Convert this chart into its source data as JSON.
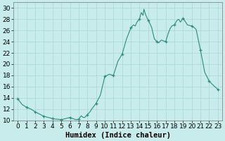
{
  "title": "",
  "xlabel": "Humidex (Indice chaleur)",
  "ylabel": "",
  "xlim": [
    -0.5,
    23.5
  ],
  "ylim": [
    10,
    31
  ],
  "yticks": [
    10,
    12,
    14,
    16,
    18,
    20,
    22,
    24,
    26,
    28,
    30
  ],
  "xticks": [
    0,
    1,
    2,
    3,
    4,
    5,
    6,
    7,
    8,
    9,
    10,
    11,
    12,
    13,
    14,
    15,
    16,
    17,
    18,
    19,
    20,
    21,
    22,
    23
  ],
  "line_color": "#2d8b7a",
  "marker_color": "#2d8b7a",
  "bg_color": "#c8ecec",
  "grid_color": "#aad4d4",
  "x": [
    0,
    0.3,
    0.5,
    1.0,
    1.5,
    2.0,
    2.5,
    3.0,
    3.5,
    4.0,
    4.3,
    4.5,
    5.0,
    5.5,
    6.0,
    6.3,
    6.5,
    6.7,
    7.0,
    7.3,
    7.5,
    7.7,
    8.0,
    8.3,
    8.5,
    9.0,
    9.5,
    10.0,
    10.5,
    11.0,
    11.5,
    12.0,
    12.5,
    13.0,
    13.3,
    13.5,
    13.7,
    14.0,
    14.2,
    14.4,
    14.5,
    14.7,
    15.0,
    15.2,
    15.4,
    15.5,
    15.7,
    16.0,
    16.2,
    16.5,
    17.0,
    17.3,
    17.5,
    17.7,
    18.0,
    18.3,
    18.5,
    18.7,
    19.0,
    19.5,
    20.0,
    20.3,
    20.5,
    21.0,
    21.5,
    22.0,
    22.3,
    22.5,
    23.0
  ],
  "y": [
    13.8,
    13.2,
    12.8,
    12.3,
    12.0,
    11.5,
    11.1,
    10.7,
    10.5,
    10.3,
    10.2,
    10.2,
    10.1,
    10.3,
    10.5,
    10.3,
    10.2,
    10.1,
    10.2,
    10.8,
    10.5,
    10.5,
    11.0,
    11.5,
    12.0,
    13.0,
    14.5,
    17.8,
    18.2,
    18.0,
    20.5,
    21.8,
    24.5,
    26.5,
    27.0,
    26.8,
    27.5,
    28.1,
    29.2,
    28.7,
    29.8,
    28.8,
    27.8,
    27.2,
    26.5,
    25.8,
    24.5,
    24.0,
    23.8,
    24.3,
    24.0,
    25.5,
    26.3,
    26.8,
    27.0,
    27.8,
    28.0,
    27.5,
    28.2,
    27.0,
    26.8,
    26.5,
    26.2,
    22.5,
    18.5,
    17.0,
    16.5,
    16.2,
    15.5
  ],
  "marker_x": [
    0,
    1,
    2,
    3,
    4,
    5,
    6,
    7,
    8,
    9,
    10,
    11,
    12,
    13,
    14,
    15,
    16,
    17,
    18,
    19,
    20,
    21,
    22,
    23
  ],
  "marker_y": [
    13.8,
    12.3,
    11.5,
    10.7,
    10.3,
    10.1,
    10.5,
    10.2,
    11.0,
    13.0,
    17.8,
    18.0,
    21.8,
    26.5,
    28.1,
    27.8,
    24.0,
    24.0,
    27.0,
    28.2,
    26.8,
    22.5,
    17.0,
    15.5
  ],
  "font_size_xlabel": 7.5,
  "tick_fontsize": 6.5
}
